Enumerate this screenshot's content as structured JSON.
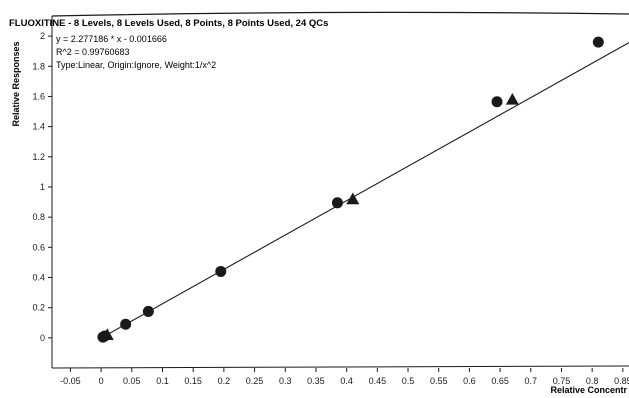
{
  "chart_data": {
    "type": "scatter",
    "title": "FLUOXITINE - 8 Levels, 8 Levels Used, 8 Points, 8 Points Used, 24 QCs",
    "annotations": [
      "y = 2.277186 * x - 0.001666",
      "R^2 = 0.99760683",
      "Type:Linear, Origin:Ignore, Weight:1/x^2"
    ],
    "xlabel": "Relative Concentr",
    "ylabel": "Relative Responses",
    "xlim": [
      -0.08,
      0.86
    ],
    "ylim": [
      -0.2,
      2.12
    ],
    "x_ticks": [
      -0.05,
      0,
      0.05,
      0.1,
      0.15,
      0.2,
      0.25,
      0.3,
      0.35,
      0.4,
      0.45,
      0.5,
      0.55,
      0.6,
      0.65,
      0.7,
      0.75,
      0.8,
      0.85
    ],
    "x_tick_labels": [
      "-0.05",
      "0",
      "0.05",
      "0.1",
      "0.15",
      "0.2",
      "0.25",
      "0.3",
      "0.35",
      "0.4",
      "0.45",
      "0.5",
      "0.55",
      "0.6",
      "0.65",
      "0.7",
      "0.75",
      "0.8",
      "0.85"
    ],
    "y_ticks": [
      0,
      0.2,
      0.4,
      0.6,
      0.8,
      1,
      1.2,
      1.4,
      1.6,
      1.8,
      2
    ],
    "y_tick_labels": [
      "0",
      "0.2",
      "0.4",
      "0.6",
      "0.8",
      "1",
      "1.2",
      "1.4",
      "1.6",
      "1.8",
      "2"
    ],
    "grid": false,
    "fit_line": {
      "slope": 2.277186,
      "intercept": -0.001666
    },
    "series": [
      {
        "marker": "circle",
        "x": [
          0.003,
          0.006,
          0.04,
          0.077,
          0.195,
          0.385,
          0.645,
          0.81
        ],
        "y": [
          0.005,
          0.012,
          0.09,
          0.175,
          0.44,
          0.895,
          1.565,
          1.96
        ]
      },
      {
        "marker": "triangle",
        "x": [
          0.01,
          0.41,
          0.67
        ],
        "y": [
          0.02,
          0.92,
          1.58
        ]
      }
    ],
    "colors": {
      "ink": "#1a1a1a",
      "background": "#ffffff"
    }
  }
}
